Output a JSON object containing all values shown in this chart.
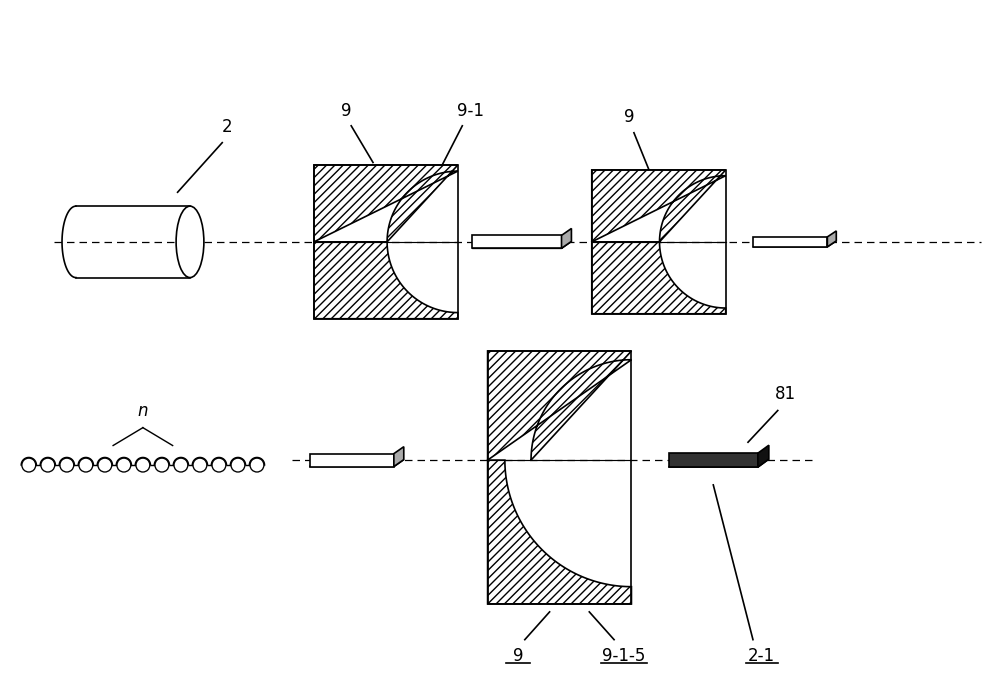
{
  "bg_color": "#ffffff",
  "line_color": "#000000",
  "label_2": "2",
  "label_9a": "9",
  "label_91": "9-1",
  "label_9b": "9",
  "label_n": "n",
  "label_81": "81",
  "label_915": "9-1-5",
  "label_21": "2-1",
  "label_9c": "9"
}
